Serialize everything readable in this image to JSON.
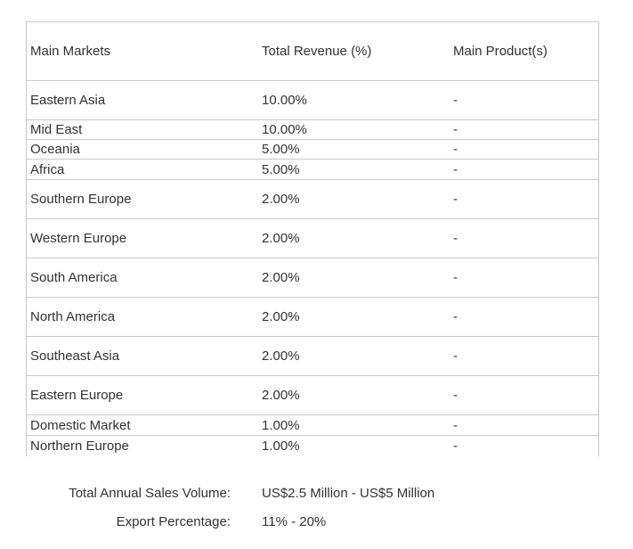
{
  "table": {
    "headers": {
      "market": "Main Markets",
      "revenue": "Total Revenue (%)",
      "products": "Main Product(s)"
    },
    "rows": [
      {
        "market": "Eastern Asia",
        "revenue": "10.00%",
        "products": "-"
      },
      {
        "market": "Mid East",
        "revenue": "10.00%",
        "products": "-"
      },
      {
        "market": "Oceania",
        "revenue": "5.00%",
        "products": "-"
      },
      {
        "market": "Africa",
        "revenue": "5.00%",
        "products": "-"
      },
      {
        "market": "Southern Europe",
        "revenue": "2.00%",
        "products": "-"
      },
      {
        "market": "Western Europe",
        "revenue": "2.00%",
        "products": "-"
      },
      {
        "market": "South America",
        "revenue": "2.00%",
        "products": "-"
      },
      {
        "market": "North America",
        "revenue": "2.00%",
        "products": "-"
      },
      {
        "market": "Southeast Asia",
        "revenue": "2.00%",
        "products": "-"
      },
      {
        "market": "Eastern Europe",
        "revenue": "2.00%",
        "products": "-"
      },
      {
        "market": "Domestic Market",
        "revenue": "1.00%",
        "products": "-"
      },
      {
        "market": "Northern Europe",
        "revenue": "1.00%",
        "products": "-"
      }
    ]
  },
  "summary": {
    "sales_label": "Total Annual Sales Volume:",
    "sales_value": "US$2.5 Million - US$5 Million",
    "export_label": "Export Percentage:",
    "export_value": "11% - 20%"
  },
  "colors": {
    "border": "#c8c8c8",
    "text": "#333333",
    "background": "#ffffff"
  }
}
